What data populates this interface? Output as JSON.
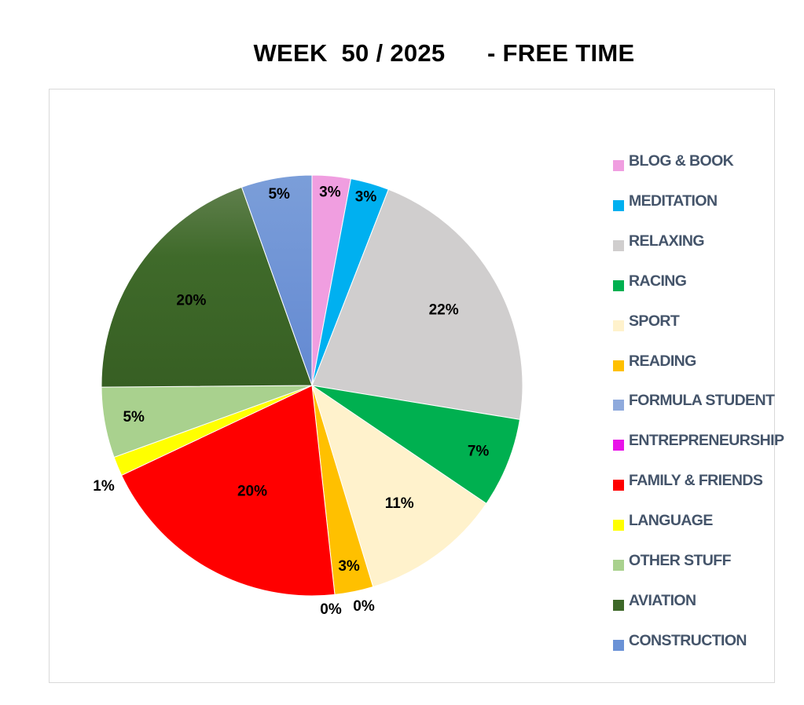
{
  "title": "WEEK  50 / 2025      - FREE TIME",
  "chart_data": {
    "type": "pie",
    "title": "WEEK  50 / 2025      - FREE TIME",
    "legend_position": "right",
    "start_angle_deg": 0,
    "direction": "clockwise",
    "slices": [
      {
        "name": "BLOG & BOOK",
        "value": 3,
        "label": "3%",
        "color": "#f09ee0"
      },
      {
        "name": "MEDITATION",
        "value": 3,
        "label": "3%",
        "color": "#00b0f0"
      },
      {
        "name": "RELAXING",
        "value": 22,
        "label": "22%",
        "color": "#d0cece"
      },
      {
        "name": "RACING",
        "value": 7,
        "label": "7%",
        "color": "#00b050"
      },
      {
        "name": "SPORT",
        "value": 11,
        "label": "11%",
        "color": "#fff2cc"
      },
      {
        "name": "READING",
        "value": 3,
        "label": "3%",
        "color": "#ffc000"
      },
      {
        "name": "FORMULA STUDENT",
        "value": 0,
        "label": "0%",
        "color": "#8faadc"
      },
      {
        "name": "ENTREPRENEURSHIP",
        "value": 0,
        "label": "0%",
        "color": "#e914e9"
      },
      {
        "name": "FAMILY & FRIENDS",
        "value": 20,
        "label": "20%",
        "color": "#ff0000"
      },
      {
        "name": "LANGUAGE",
        "value": 1.5,
        "label": "1%",
        "color": "#ffff00"
      },
      {
        "name": "OTHER STUFF",
        "value": 5.5,
        "label": "5%",
        "color": "#a9d18e"
      },
      {
        "name": "AVIATION",
        "value": 20,
        "label": "20%",
        "color": "#3d6828"
      },
      {
        "name": "CONSTRUCTION",
        "value": 5.5,
        "label": "5%",
        "color": "#6a92d6"
      }
    ]
  }
}
